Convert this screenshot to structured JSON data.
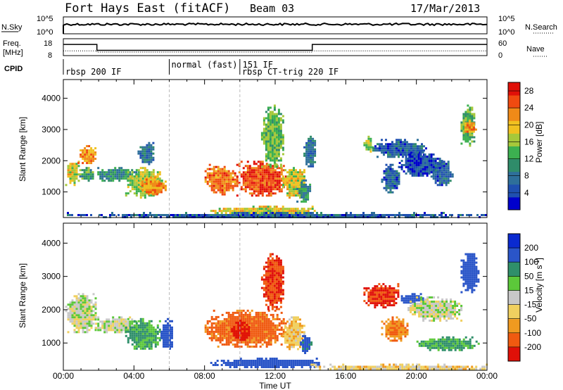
{
  "header": {
    "station": "Fort Hays East (fitACF)",
    "beam": "Beam 03",
    "date": "17/Mar/2013"
  },
  "noise_panel": {
    "left_label": "N.Sky",
    "right_label": "N.Search",
    "left_ticks": [
      "10^5",
      "10^0"
    ],
    "right_ticks": [
      "10^5",
      "10^0"
    ]
  },
  "freq_panel": {
    "left_label_1": "Freq.",
    "left_label_2": "[MHz]",
    "left_ticks": [
      "18",
      "8"
    ],
    "right_label": "Nave",
    "right_ticks": [
      "60",
      "0"
    ],
    "freq_steps": [
      {
        "t0": 0.0,
        "t1": 1.9,
        "mhz": 16.5
      },
      {
        "t0": 1.9,
        "t1": 14.1,
        "mhz": 10.5
      },
      {
        "t0": 14.1,
        "t1": 24.0,
        "mhz": 16.5
      }
    ],
    "nave_steps": [
      {
        "t0": 0.0,
        "t1": 1.9,
        "nave": 20
      },
      {
        "t0": 1.9,
        "t1": 14.1,
        "nave": 15
      },
      {
        "t0": 14.1,
        "t1": 24.0,
        "nave": 20
      }
    ]
  },
  "cpid": {
    "label": "CPID",
    "segments": [
      {
        "t": 0.0,
        "text": "rbsp 200 IF",
        "row": 1
      },
      {
        "t": 6.0,
        "text": "normal (fast) 151 IF",
        "row": 0
      },
      {
        "t": 10.0,
        "text": "rbsp CT-trig 220 IF",
        "row": 1
      }
    ]
  },
  "chart_data": [
    {
      "type": "heatmap",
      "parameter": "power",
      "ylabel": "Slant Range [km]",
      "xlabel": "Time UT",
      "xlim": [
        0,
        24
      ],
      "ylim": [
        180,
        4600
      ],
      "x_ticks": [
        "00:00",
        "04:00",
        "08:00",
        "12:00",
        "16:00",
        "20:00",
        "00:00"
      ],
      "y_ticks": [
        1000,
        2000,
        3000,
        4000
      ],
      "colorbar": {
        "label": "Power [dB]",
        "ticks": [
          4,
          8,
          12,
          16,
          20,
          24,
          28
        ],
        "range": [
          0,
          30
        ],
        "colors": [
          "#0000cc",
          "#1f4fb0",
          "#2e6f9a",
          "#2f8c6a",
          "#3cb050",
          "#a6c83a",
          "#f0c020",
          "#f08a18",
          "#f04a10",
          "#e01008"
        ]
      },
      "regions": [
        {
          "t0": 0.1,
          "t1": 0.9,
          "r0": 1250,
          "r1": 2000,
          "value": 18
        },
        {
          "t0": 0.8,
          "t1": 1.8,
          "r0": 1900,
          "r1": 2500,
          "value": 22
        },
        {
          "t0": 0.9,
          "t1": 1.7,
          "r0": 1350,
          "r1": 1800,
          "value": 12
        },
        {
          "t0": 1.8,
          "t1": 4.2,
          "r0": 1350,
          "r1": 1800,
          "value": 10
        },
        {
          "t0": 4.2,
          "t1": 5.1,
          "r0": 1900,
          "r1": 2600,
          "value": 8
        },
        {
          "t0": 3.5,
          "t1": 5.6,
          "r0": 850,
          "r1": 1800,
          "value": 16
        },
        {
          "t0": 4.3,
          "t1": 5.8,
          "r0": 900,
          "r1": 1500,
          "value": 22
        },
        {
          "t0": 8.0,
          "t1": 9.8,
          "r0": 950,
          "r1": 1900,
          "value": 24
        },
        {
          "t0": 9.8,
          "t1": 12.6,
          "r0": 900,
          "r1": 2000,
          "value": 26
        },
        {
          "t0": 12.4,
          "t1": 13.7,
          "r0": 800,
          "r1": 1800,
          "value": 18
        },
        {
          "t0": 13.2,
          "t1": 14.0,
          "r0": 700,
          "r1": 1400,
          "value": 10
        },
        {
          "t0": 11.2,
          "t1": 12.5,
          "r0": 1800,
          "r1": 3800,
          "value": 14
        },
        {
          "t0": 13.6,
          "t1": 14.3,
          "r0": 1800,
          "r1": 2800,
          "value": 8
        },
        {
          "t0": 8.2,
          "t1": 14.5,
          "r0": 280,
          "r1": 560,
          "value": 18
        },
        {
          "t0": 17.0,
          "t1": 17.5,
          "r0": 2300,
          "r1": 2800,
          "value": 16
        },
        {
          "t0": 17.5,
          "t1": 20.5,
          "r0": 2100,
          "r1": 2700,
          "value": 6
        },
        {
          "t0": 18.0,
          "t1": 19.0,
          "r0": 1000,
          "r1": 1900,
          "value": 6
        },
        {
          "t0": 19.0,
          "t1": 21.5,
          "r0": 1500,
          "r1": 2300,
          "value": 5
        },
        {
          "t0": 20.8,
          "t1": 22.0,
          "r0": 1200,
          "r1": 2000,
          "value": 6
        },
        {
          "t0": 22.5,
          "t1": 23.3,
          "r0": 2500,
          "r1": 3800,
          "value": 14
        },
        {
          "t0": 22.6,
          "t1": 23.4,
          "r0": 2900,
          "r1": 3300,
          "value": 22
        },
        {
          "t0": 0.2,
          "t1": 24.0,
          "r0": 190,
          "r1": 360,
          "value": 6
        }
      ]
    },
    {
      "type": "heatmap",
      "parameter": "velocity",
      "ylabel": "Slant Range [km]",
      "xlabel": "Time UT",
      "xlim": [
        0,
        24
      ],
      "ylim": [
        180,
        4600
      ],
      "x_ticks": [
        "00:00",
        "04:00",
        "08:00",
        "12:00",
        "16:00",
        "20:00",
        "00:00"
      ],
      "y_ticks": [
        1000,
        2000,
        3000,
        4000
      ],
      "colorbar": {
        "label": "Velocity [m s^-1]",
        "ticks": [
          "200",
          "100",
          "50",
          "15",
          "-15",
          "-50",
          "-100",
          "-200"
        ],
        "colors": [
          "#0a2ad0",
          "#2a55c8",
          "#2f8f6a",
          "#5cc83a",
          "#c8c8c8",
          "#f0d060",
          "#f09a20",
          "#f05a10",
          "#e01008"
        ]
      },
      "regions": [
        {
          "t0": 0.1,
          "t1": 1.8,
          "r0": 1300,
          "r1": 2500,
          "value": 0
        },
        {
          "t0": 1.8,
          "t1": 4.2,
          "r0": 1300,
          "r1": 1800,
          "value": 0
        },
        {
          "t0": 3.5,
          "t1": 5.5,
          "r0": 800,
          "r1": 1750,
          "value": 60
        },
        {
          "t0": 5.5,
          "t1": 6.2,
          "r0": 800,
          "r1": 1750,
          "value": 140
        },
        {
          "t0": 8.0,
          "t1": 12.6,
          "r0": 900,
          "r1": 2000,
          "value": -120
        },
        {
          "t0": 9.5,
          "t1": 10.5,
          "r0": 1100,
          "r1": 1700,
          "value": -220
        },
        {
          "t0": 12.4,
          "t1": 13.6,
          "r0": 800,
          "r1": 1800,
          "value": -40
        },
        {
          "t0": 13.4,
          "t1": 14.0,
          "r0": 700,
          "r1": 1300,
          "value": 120
        },
        {
          "t0": 11.2,
          "t1": 12.5,
          "r0": 2000,
          "r1": 3700,
          "value": -200
        },
        {
          "t0": 17.0,
          "t1": 19.0,
          "r0": 2100,
          "r1": 2800,
          "value": -210
        },
        {
          "t0": 19.0,
          "t1": 20.4,
          "r0": 2200,
          "r1": 2500,
          "value": 150
        },
        {
          "t0": 18.0,
          "t1": 19.5,
          "r0": 1100,
          "r1": 1800,
          "value": -90
        },
        {
          "t0": 19.5,
          "t1": 22.5,
          "r0": 1700,
          "r1": 2400,
          "value": 0
        },
        {
          "t0": 20.0,
          "t1": 23.5,
          "r0": 800,
          "r1": 1200,
          "value": 60
        },
        {
          "t0": 22.5,
          "t1": 23.5,
          "r0": 2500,
          "r1": 3700,
          "value": 140
        },
        {
          "t0": 8.2,
          "t1": 14.5,
          "r0": 280,
          "r1": 560,
          "value": 150
        },
        {
          "t0": 14.0,
          "t1": 24.0,
          "r0": 190,
          "r1": 380,
          "value": -30
        }
      ]
    }
  ]
}
